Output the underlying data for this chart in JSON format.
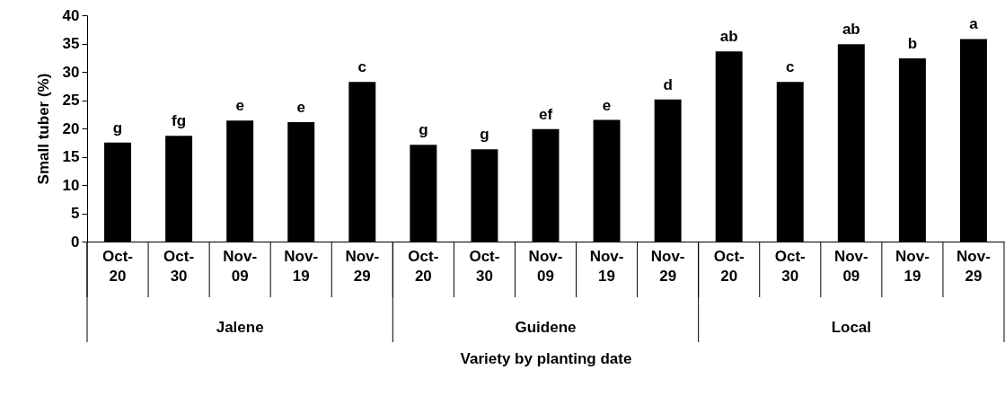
{
  "chart_data": {
    "type": "bar",
    "xlabel": "Variety by planting date",
    "ylabel": "Small tuber (%)",
    "categories": [
      "Oct-20",
      "Oct-30",
      "Nov-09",
      "Nov-19",
      "Nov-29",
      "Oct-20",
      "Oct-30",
      "Nov-09",
      "Nov-19",
      "Nov-29",
      "Oct-20",
      "Oct-30",
      "Nov-09",
      "Nov-19",
      "Nov-29"
    ],
    "values": [
      17.5,
      18.7,
      21.4,
      21.1,
      28.2,
      17.1,
      16.3,
      19.9,
      21.5,
      25.1,
      33.6,
      28.2,
      34.9,
      32.4,
      35.8
    ],
    "value_labels": [
      "g",
      "fg",
      "e",
      "e",
      "c",
      "g",
      "g",
      "ef",
      "e",
      "d",
      "ab",
      "c",
      "ab",
      "b",
      "a"
    ],
    "color": "#000000",
    "ylim": [
      0,
      40
    ],
    "yticks": [
      0,
      5,
      10,
      15,
      20,
      25,
      30,
      35,
      40
    ],
    "grid": false,
    "annotations": [
      "Jalene",
      "Guidene",
      "Local"
    ]
  }
}
